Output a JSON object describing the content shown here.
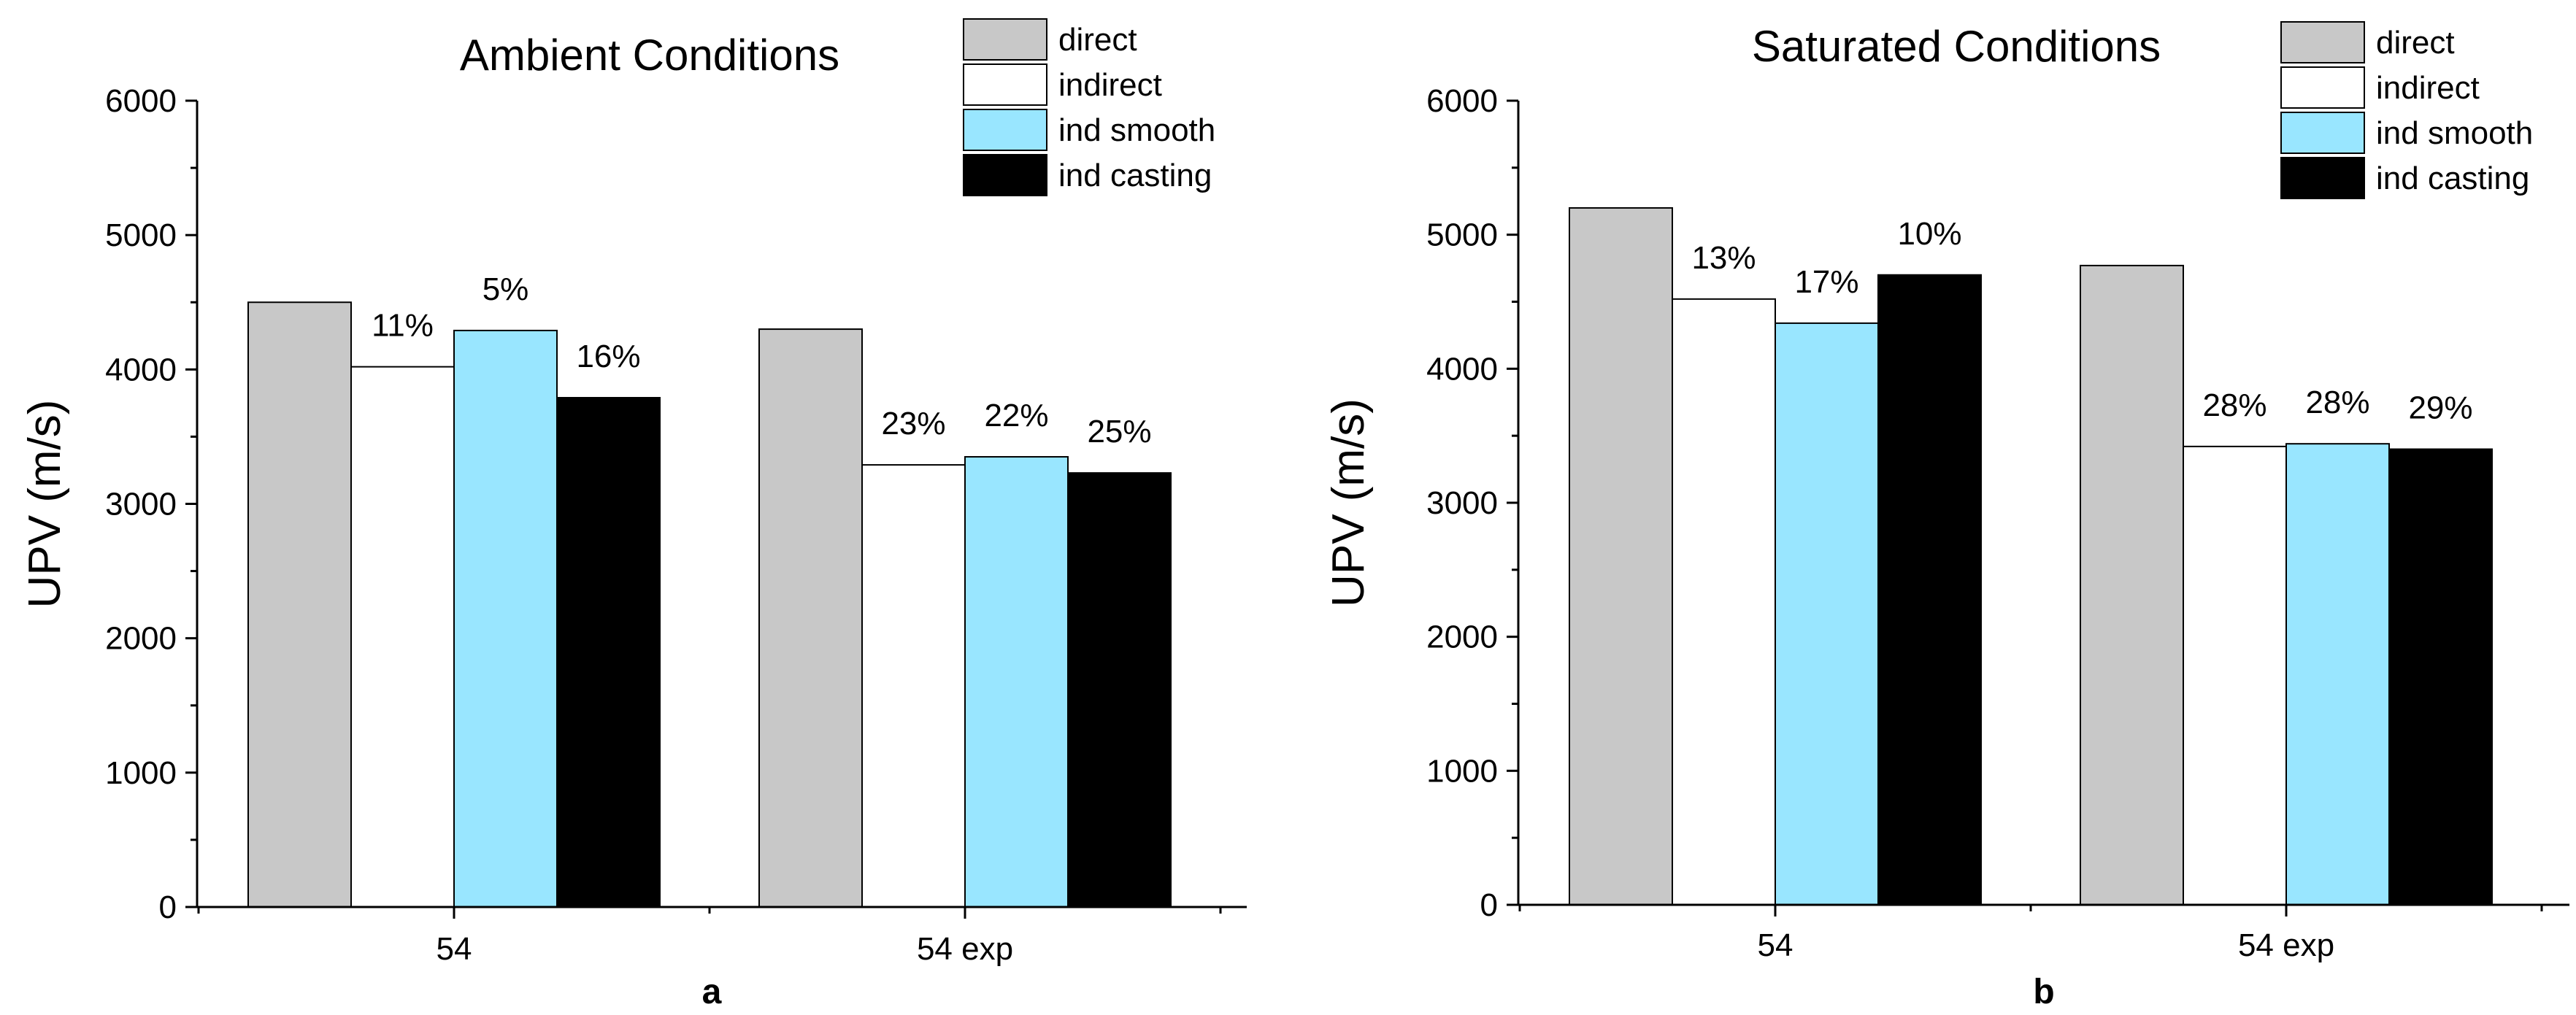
{
  "colors": {
    "direct": "#c8c8c8",
    "indirect": "#ffffff",
    "ind smooth": "#99e6ff",
    "ind casting": "#000000",
    "stroke": "#000000"
  },
  "chart_data": [
    {
      "type": "bar",
      "panel_label": "a",
      "title": "Ambient Conditions",
      "xlabel": "",
      "ylabel": "UPV (m/s)",
      "ylim": [
        0,
        6000
      ],
      "yticks": [
        0,
        1000,
        2000,
        3000,
        4000,
        5000,
        6000
      ],
      "yticks_labels": [
        "0",
        "1000",
        "2000",
        "3000",
        "4000",
        "5000",
        "6000"
      ],
      "categories": [
        "54",
        "54 exp"
      ],
      "legend_position": "top-right",
      "series": [
        {
          "name": "direct",
          "values": [
            4500,
            4300
          ],
          "labels": [
            "",
            ""
          ]
        },
        {
          "name": "indirect",
          "values": [
            4020,
            3290
          ],
          "labels": [
            "11%",
            "23%"
          ]
        },
        {
          "name": "ind smooth",
          "values": [
            4290,
            3350
          ],
          "labels": [
            "5%",
            "22%"
          ]
        },
        {
          "name": "ind casting",
          "values": [
            3790,
            3230
          ],
          "labels": [
            "16%",
            "25%"
          ]
        }
      ]
    },
    {
      "type": "bar",
      "panel_label": "b",
      "title": "Saturated Conditions",
      "xlabel": "",
      "ylabel": "UPV (m/s)",
      "ylim": [
        0,
        6000
      ],
      "yticks": [
        0,
        1000,
        2000,
        3000,
        4000,
        5000,
        6000
      ],
      "yticks_labels": [
        "0",
        "1000",
        "2000",
        "3000",
        "4000",
        "5000",
        "6000"
      ],
      "categories": [
        "54",
        "54 exp"
      ],
      "legend_position": "top-right",
      "series": [
        {
          "name": "direct",
          "values": [
            5200,
            4770
          ],
          "labels": [
            "",
            ""
          ]
        },
        {
          "name": "indirect",
          "values": [
            4520,
            3420
          ],
          "labels": [
            "13%",
            "28%"
          ]
        },
        {
          "name": "ind smooth",
          "values": [
            4340,
            3440
          ],
          "labels": [
            "17%",
            "28%"
          ]
        },
        {
          "name": "ind casting",
          "values": [
            4700,
            3400
          ],
          "labels": [
            "10%",
            "29%"
          ]
        }
      ]
    }
  ]
}
